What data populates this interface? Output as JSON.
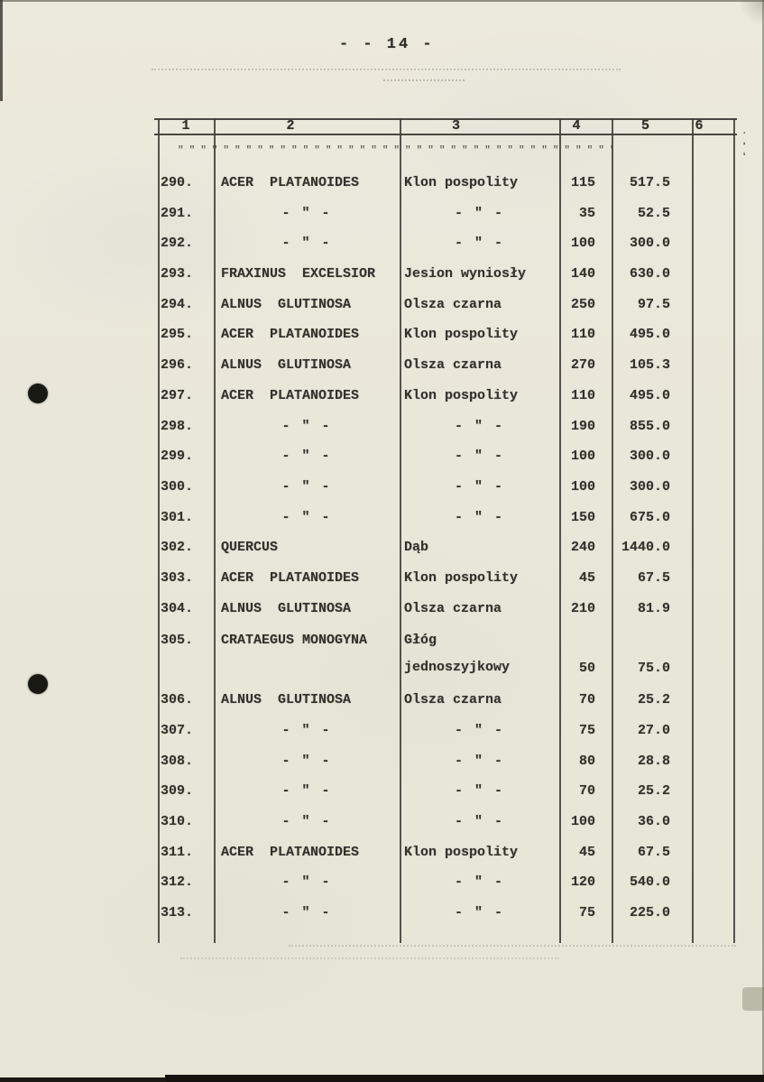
{
  "page": {
    "number": "- - 14 -"
  },
  "scan_marks": {
    "header_quote_marks": "\"\"\"\"\"\"\"\"\"\"\"\"\"\"\"\"\"\"\"\"\"\"\"\"\"\"\"\"\"\"\"\"\"\"\"\"\"\"\"\"",
    "ruler_dots_right": ". . .",
    "ruler_dots_right2": "' '"
  },
  "table": {
    "column_headers": [
      "1",
      "2",
      "3",
      "4",
      "5",
      "6"
    ],
    "ditto": "- \" -",
    "rows": [
      {
        "no": "290.",
        "latin": "ACER  PLATANOIDES",
        "polish": "Klon pospolity",
        "c4": "115",
        "c5": "517.5"
      },
      {
        "no": "291.",
        "latin": "- \" -",
        "polish": "- \" -",
        "c4": "35",
        "c5": "52.5"
      },
      {
        "no": "292.",
        "latin": "- \" -",
        "polish": "- \" -",
        "c4": "100",
        "c5": "300.0"
      },
      {
        "no": "293.",
        "latin": "FRAXINUS  EXCELSIOR",
        "polish": "Jesion wyniosły",
        "c4": "140",
        "c5": "630.0"
      },
      {
        "no": "294.",
        "latin": "ALNUS  GLUTINOSA",
        "polish": "Olsza czarna",
        "c4": "250",
        "c5": "97.5"
      },
      {
        "no": "295.",
        "latin": "ACER  PLATANOIDES",
        "polish": "Klon pospolity",
        "c4": "110",
        "c5": "495.0"
      },
      {
        "no": "296.",
        "latin": "ALNUS  GLUTINOSA",
        "polish": "Olsza czarna",
        "c4": "270",
        "c5": "105.3"
      },
      {
        "no": "297.",
        "latin": "ACER  PLATANOIDES",
        "polish": "Klon pospolity",
        "c4": "110",
        "c5": "495.0"
      },
      {
        "no": "298.",
        "latin": "- \" -",
        "polish": "- \" -",
        "c4": "190",
        "c5": "855.0"
      },
      {
        "no": "299.",
        "latin": "- \" -",
        "polish": "- \" -",
        "c4": "100",
        "c5": "300.0"
      },
      {
        "no": "300.",
        "latin": "- \" -",
        "polish": "- \" -",
        "c4": "100",
        "c5": "300.0"
      },
      {
        "no": "301.",
        "latin": "- \" -",
        "polish": "- \" -",
        "c4": "150",
        "c5": "675.0"
      },
      {
        "no": "302.",
        "latin": "QUERCUS",
        "polish": "Dąb",
        "c4": "240",
        "c5": "1440.0"
      },
      {
        "no": "303.",
        "latin": "ACER  PLATANOIDES",
        "polish": "Klon pospolity",
        "c4": "45",
        "c5": "67.5"
      },
      {
        "no": "304.",
        "latin": "ALNUS  GLUTINOSA",
        "polish": "Olsza czarna",
        "c4": "210",
        "c5": "81.9"
      },
      {
        "no": "305.",
        "latin": "CRATAEGUS MONOGYNA",
        "polish": "Głóg\njednoszyjkowy",
        "c4": "50",
        "c5": "75.0"
      },
      {
        "no": "306.",
        "latin": "ALNUS  GLUTINOSA",
        "polish": "Olsza czarna",
        "c4": "70",
        "c5": "25.2"
      },
      {
        "no": "307.",
        "latin": "- \" -",
        "polish": "- \" -",
        "c4": "75",
        "c5": "27.0"
      },
      {
        "no": "308.",
        "latin": "- \" -",
        "polish": "- \" -",
        "c4": "80",
        "c5": "28.8"
      },
      {
        "no": "309.",
        "latin": "- \" -",
        "polish": "- \" -",
        "c4": "70",
        "c5": "25.2"
      },
      {
        "no": "310.",
        "latin": "- \" -",
        "polish": "- \" -",
        "c4": "100",
        "c5": "36.0"
      },
      {
        "no": "311.",
        "latin": "ACER  PLATANOIDES",
        "polish": "Klon pospolity",
        "c4": "45",
        "c5": "67.5"
      },
      {
        "no": "312.",
        "latin": "- \" -",
        "polish": "- \" -",
        "c4": "120",
        "c5": "540.0"
      },
      {
        "no": "313.",
        "latin": "- \" -",
        "polish": "- \" -",
        "c4": "75",
        "c5": "225.0"
      }
    ]
  },
  "colors": {
    "paper": "#e9e7da",
    "ink": "#32312b",
    "table_line": "#403f37",
    "punch_hole": "#191914"
  }
}
